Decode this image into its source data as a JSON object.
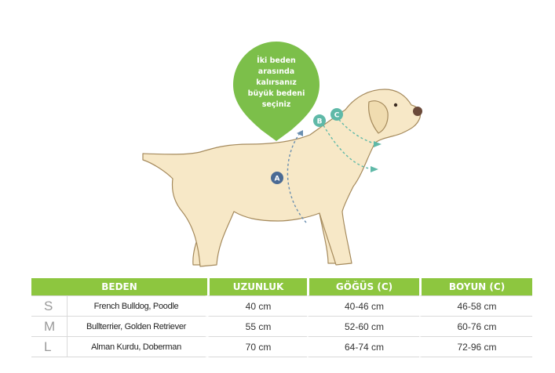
{
  "tooltip": {
    "lines": [
      "İki beden",
      "arasında",
      "kalırsanız",
      "büyük bedeni",
      "seçiniz"
    ],
    "color": "#7cbf4a"
  },
  "markers": {
    "a": "A",
    "b": "B",
    "c": "C"
  },
  "table": {
    "headers": [
      "BEDEN",
      "UZUNLUK",
      "GÖĞÜS (C)",
      "BOYUN (C)"
    ],
    "rows": [
      {
        "size": "S",
        "breeds": "French Bulldog, Poodle",
        "length": "40 cm",
        "chest": "40-46 cm",
        "neck": "46-58 cm"
      },
      {
        "size": "M",
        "breeds": "Bullterrier, Golden Retriever",
        "length": "55 cm",
        "chest": "52-60 cm",
        "neck": "60-76 cm"
      },
      {
        "size": "L",
        "breeds": "Alman Kurdu, Doberman",
        "length": "70 cm",
        "chest": "64-74 cm",
        "neck": "72-96 cm"
      }
    ],
    "header_color": "#8dc63f"
  }
}
